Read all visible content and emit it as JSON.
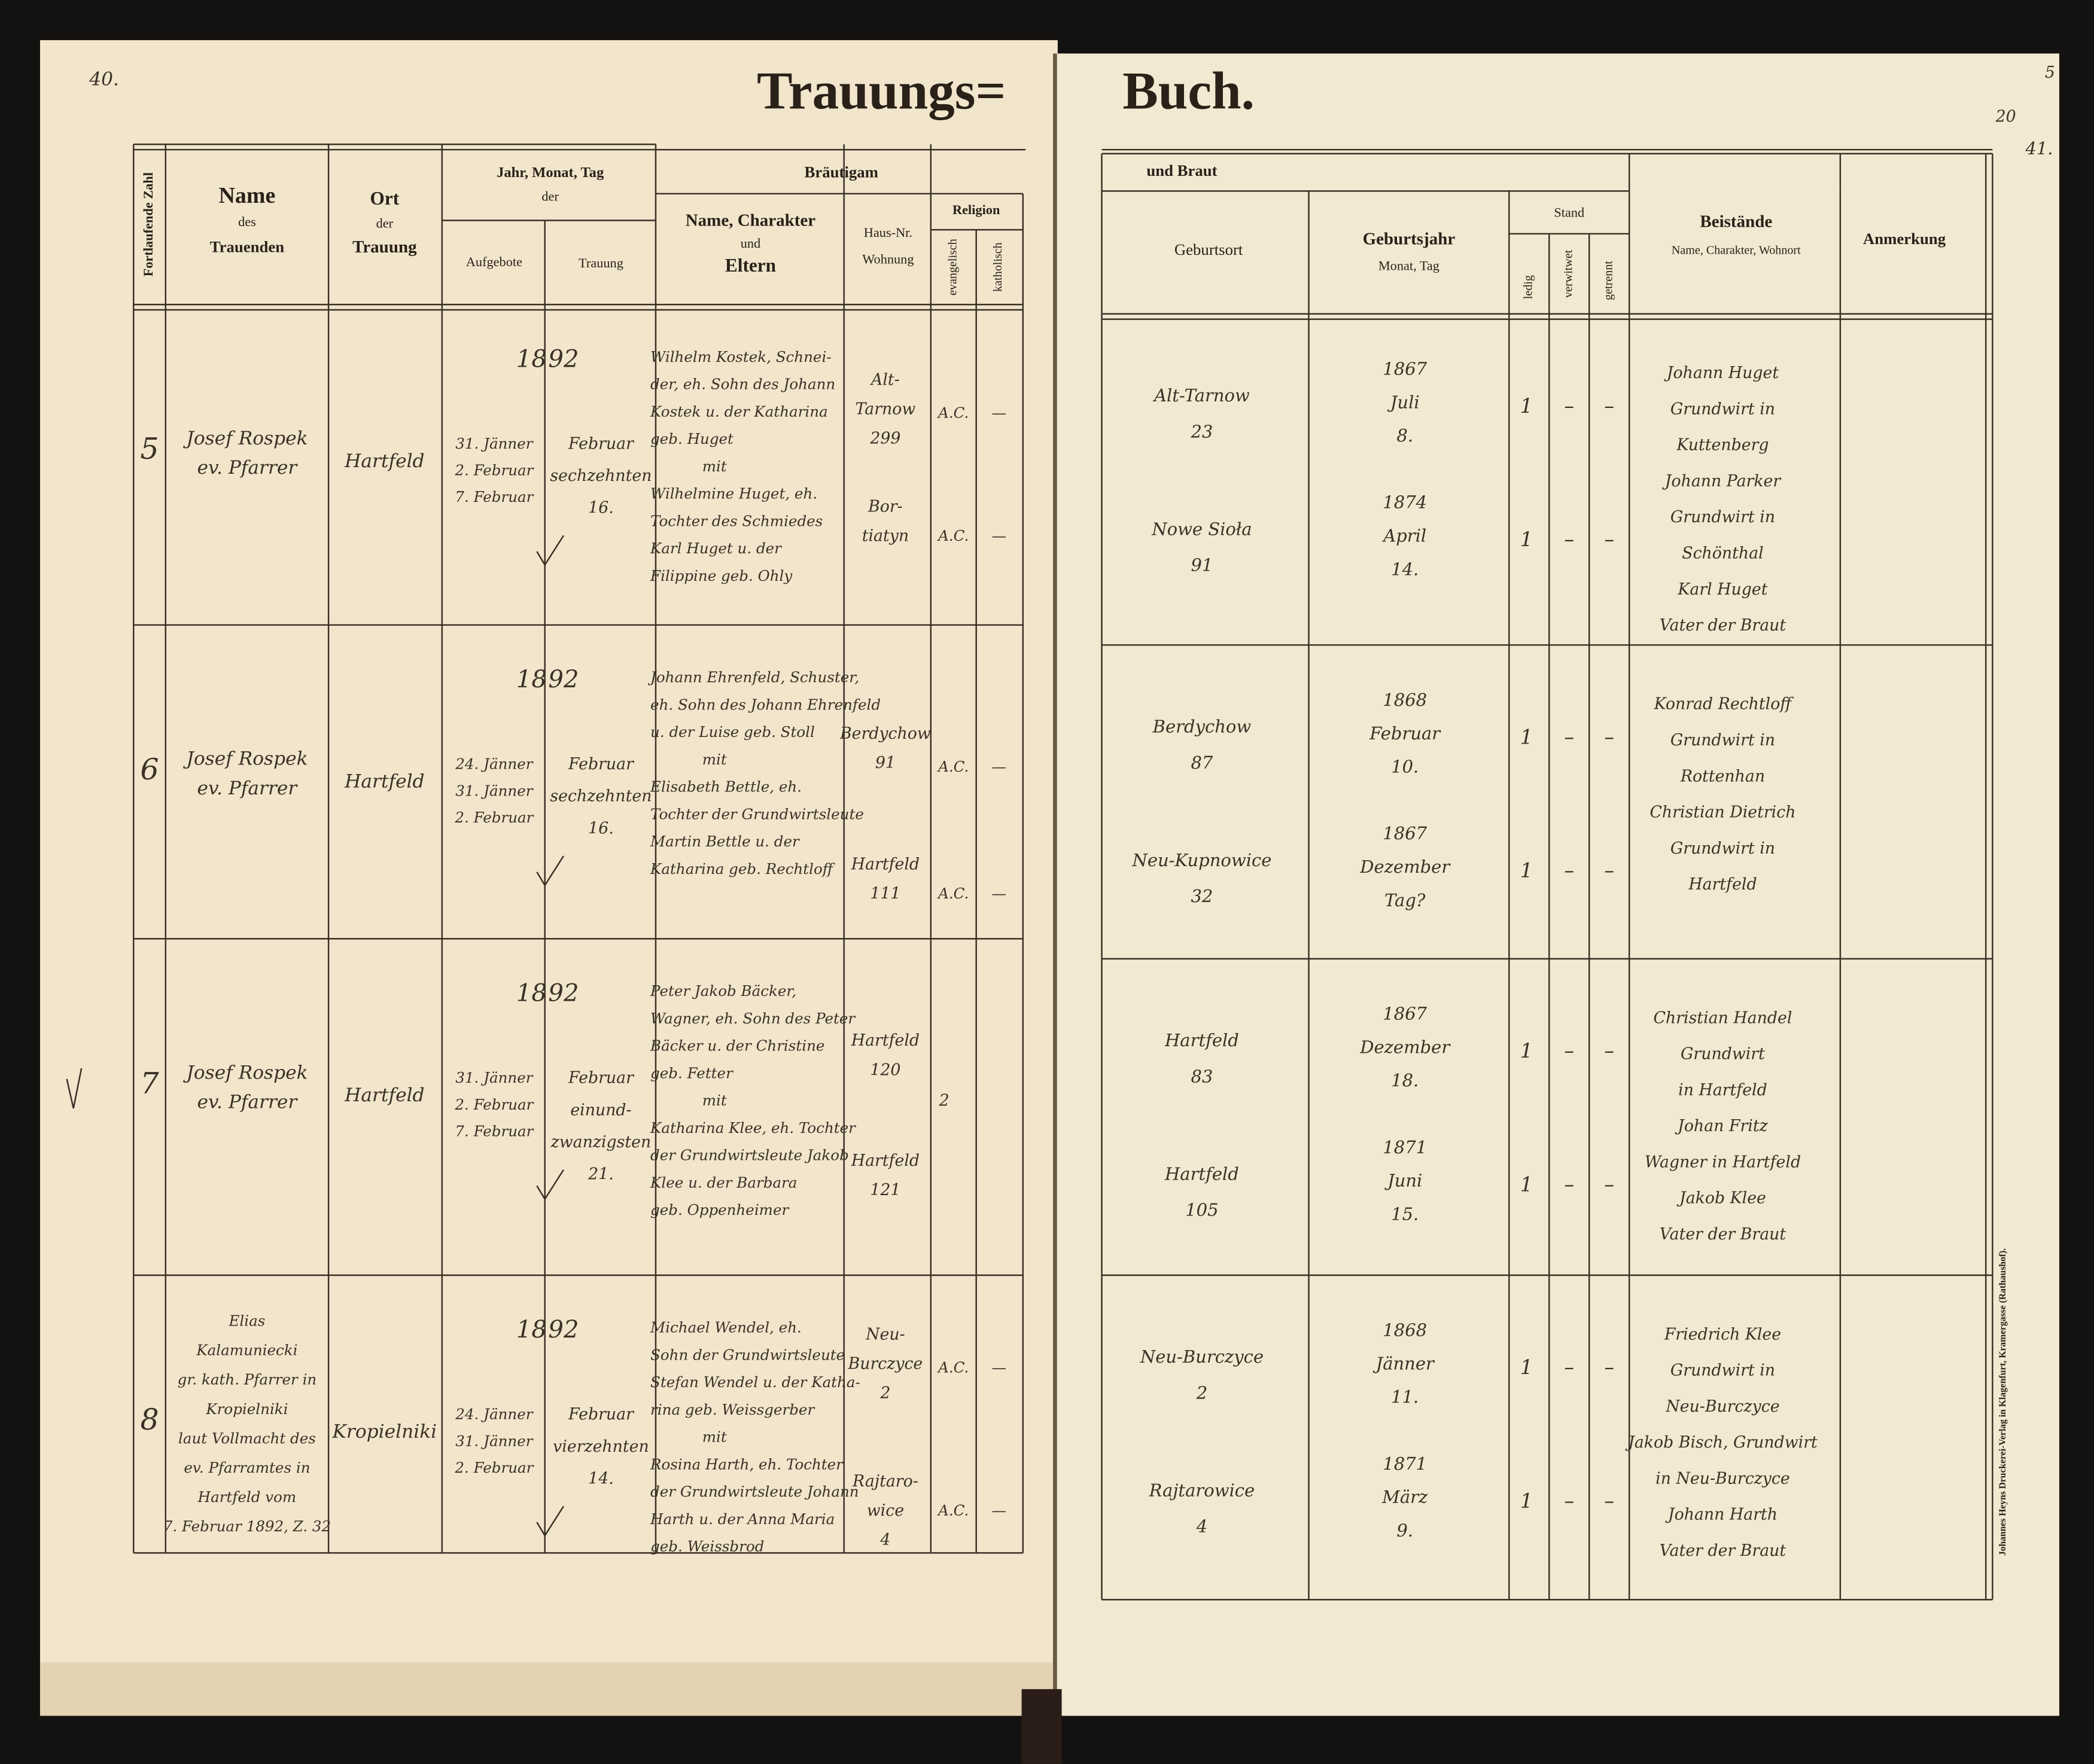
{
  "page_numbers": {
    "left": "40.",
    "right_top": "5",
    "right_mid": "20",
    "right_corner": "41."
  },
  "title": {
    "left": "Trauungs=",
    "right": "Buch."
  },
  "left_header": {
    "serial": "Fortlaufende Zahl",
    "name": [
      "Name",
      "des",
      "Trauenden"
    ],
    "place": [
      "Ort",
      "der",
      "Trauung"
    ],
    "date": [
      "Jahr, Monat, Tag",
      "der"
    ],
    "banns": "Aufgebote",
    "wedding": "Trauung",
    "groom": "Bräutigam",
    "groom_name": [
      "Name, Charakter",
      "und",
      "Eltern"
    ],
    "house": [
      "Haus-Nr.",
      "Wohnung"
    ],
    "religion": "Religion",
    "evangelisch": "evangelisch",
    "katholisch": "katholisch"
  },
  "right_header": {
    "bride": "und Braut",
    "birthplace": "Geburtsort",
    "birth": [
      "Geburtsjahr",
      "Monat, Tag"
    ],
    "stand": "Stand",
    "ledig": "ledig",
    "verwitwet": "verwitwet",
    "getrennt": "getrennt",
    "witnesses": [
      "Beistände",
      "Name, Charakter, Wohnort"
    ],
    "remark": "Anmerkung"
  },
  "entries": [
    {
      "number": "5",
      "officiant": [
        "Josef Rospek",
        "ev. Pfarrer"
      ],
      "place": "Hartfeld",
      "year": [
        "18",
        "92"
      ],
      "banns": [
        "31. Jänner",
        "2. Februar",
        "7. Februar"
      ],
      "wedding": [
        "Februar",
        "sechzehnten",
        "16."
      ],
      "couple": [
        "Wilhelm Kostek, Schnei-",
        "der, eh. Sohn des Johann",
        "Kostek u. der Katharina",
        "geb. Huget",
        "mit",
        "Wilhelmine Huget, eh.",
        "Tochter des Schmiedes",
        "Karl Huget u. der",
        "Filippine geb. Ohly"
      ],
      "groom_house": [
        "Alt-",
        "Tarnow",
        "299"
      ],
      "groom_religion": [
        "A.C.",
        "—"
      ],
      "bride_house": [
        "Bor-",
        "tiatyn"
      ],
      "bride_religion": [
        "A.C.",
        "—"
      ],
      "groom_birthplace": [
        "Alt-Tarnow",
        "23"
      ],
      "groom_birth": [
        "1867",
        "Juli",
        "8."
      ],
      "groom_stand": [
        "1",
        "–",
        "–"
      ],
      "bride_birthplace": [
        "Nowe Sioła",
        "91"
      ],
      "bride_birth": [
        "1874",
        "April",
        "14."
      ],
      "bride_stand": [
        "1",
        "–",
        "–"
      ],
      "witnesses": [
        "Johann Huget",
        "Grundwirt in",
        "Kuttenberg",
        "Johann Parker",
        "Grundwirt in",
        "Schönthal",
        "Karl Huget",
        "Vater der Braut"
      ]
    },
    {
      "number": "6",
      "officiant": [
        "Josef Rospek",
        "ev. Pfarrer"
      ],
      "place": "Hartfeld",
      "year": [
        "18",
        "92"
      ],
      "banns": [
        "24. Jänner",
        "31. Jänner",
        "2. Februar"
      ],
      "wedding": [
        "Februar",
        "sechzehnten",
        "16."
      ],
      "couple": [
        "Johann Ehrenfeld, Schuster,",
        "eh. Sohn des Johann Ehrenfeld",
        "u. der Luise geb. Stoll",
        "mit",
        "Elisabeth Bettle, eh.",
        "Tochter der Grundwirtsleute",
        "Martin Bettle u. der",
        "Katharina geb. Rechtloff"
      ],
      "groom_house": [
        "Berdychow",
        "91"
      ],
      "groom_religion": [
        "A.C.",
        "—"
      ],
      "bride_house": [
        "Hartfeld",
        "111"
      ],
      "bride_religion": [
        "A.C.",
        "—"
      ],
      "groom_birthplace": [
        "Berdychow",
        "87"
      ],
      "groom_birth": [
        "1868",
        "Februar",
        "10."
      ],
      "groom_stand": [
        "1",
        "–",
        "–"
      ],
      "bride_birthplace": [
        "Neu-Kupnowice",
        "32"
      ],
      "bride_birth": [
        "1867",
        "Dezember",
        "Tag?"
      ],
      "bride_stand": [
        "1",
        "–",
        "–"
      ],
      "witnesses": [
        "Konrad Rechtloff",
        "Grundwirt in",
        "Rottenhan",
        "Christian Dietrich",
        "Grundwirt in",
        "Hartfeld"
      ]
    },
    {
      "number": "7",
      "officiant": [
        "Josef Rospek",
        "ev. Pfarrer"
      ],
      "place": "Hartfeld",
      "year": [
        "18",
        "92"
      ],
      "banns": [
        "31. Jänner",
        "2. Februar",
        "7. Februar"
      ],
      "wedding": [
        "Februar",
        "einund-",
        "zwanzigsten",
        "21."
      ],
      "couple": [
        "Peter Jakob Bäcker,",
        "Wagner, eh. Sohn des Peter",
        "Bäcker u. der Christine",
        "geb. Fetter",
        "mit",
        "Katharina Klee, eh. Tochter",
        "der Grundwirtsleute Jakob",
        "Klee u. der Barbara",
        "geb. Oppenheimer"
      ],
      "groom_house": [
        "Hartfeld",
        "120"
      ],
      "religion_note": "2",
      "bride_house": [
        "Hartfeld",
        "121"
      ],
      "groom_birthplace": [
        "Hartfeld",
        "83"
      ],
      "groom_birth": [
        "1867",
        "Dezember",
        "18."
      ],
      "groom_stand": [
        "1",
        "–",
        "–"
      ],
      "bride_birthplace": [
        "Hartfeld",
        "105"
      ],
      "bride_birth": [
        "1871",
        "Juni",
        "15."
      ],
      "bride_stand": [
        "1",
        "–",
        "–"
      ],
      "witnesses": [
        "Christian Handel",
        "Grundwirt",
        "in Hartfeld",
        "Johan Fritz",
        "Wagner in Hartfeld",
        "Jakob Klee",
        "Vater der Braut"
      ]
    },
    {
      "number": "8",
      "officiant": [
        "Elias",
        "Kalamuniecki",
        "gr. kath. Pfarrer in",
        "Kropielniki",
        "laut Vollmacht des",
        "ev. Pfarramtes in",
        "Hartfeld vom",
        "7. Februar 1892, Z. 32"
      ],
      "place": "Kropielniki",
      "year": [
        "18",
        "92"
      ],
      "banns": [
        "24. Jänner",
        "31. Jänner",
        "2. Februar"
      ],
      "wedding": [
        "Februar",
        "vierzehnten",
        "14."
      ],
      "couple": [
        "Michael Wendel, eh.",
        "Sohn der Grundwirtsleute",
        "Stefan Wendel u. der Katha-",
        "rina geb. Weissgerber",
        "mit",
        "Rosina Harth, eh. Tochter",
        "der Grundwirtsleute Johann",
        "Harth u. der Anna Maria",
        "geb. Weissbrod"
      ],
      "groom_house": [
        "Neu-",
        "Burczyce",
        "2"
      ],
      "groom_religion": [
        "A.C.",
        "—"
      ],
      "bride_house": [
        "Rajtaro-",
        "wice",
        "4"
      ],
      "bride_religion": [
        "A.C.",
        "—"
      ],
      "groom_birthplace": [
        "Neu-Burczyce",
        "2"
      ],
      "groom_birth": [
        "1868",
        "Jänner",
        "11."
      ],
      "groom_stand": [
        "1",
        "–",
        "–"
      ],
      "bride_birthplace": [
        "Rajtarowice",
        "4"
      ],
      "bride_birth": [
        "1871",
        "März",
        "9."
      ],
      "bride_stand": [
        "1",
        "–",
        "–"
      ],
      "witnesses": [
        "Friedrich Klee",
        "Grundwirt in",
        "Neu-Burczyce",
        "Jakob Bisch, Grundwirt",
        "in Neu-Burczyce",
        "Johann Harth",
        "Vater der Braut"
      ]
    }
  ],
  "printer": "Johannes Heyns Druckerei-Verlag in Klagenfurt, Kramergasse (Rathaushof)."
}
